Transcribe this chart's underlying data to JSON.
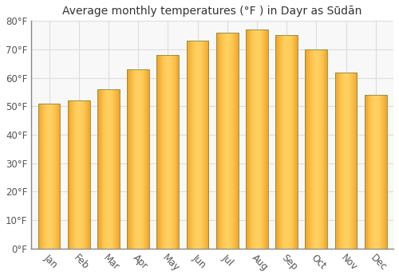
{
  "title": "Average monthly temperatures (°F ) in Dayr as Sūdān",
  "months": [
    "Jan",
    "Feb",
    "Mar",
    "Apr",
    "May",
    "Jun",
    "Jul",
    "Aug",
    "Sep",
    "Oct",
    "Nov",
    "Dec"
  ],
  "values": [
    51,
    52,
    56,
    63,
    68,
    73,
    76,
    77,
    75,
    70,
    62,
    54
  ],
  "ylim": [
    0,
    80
  ],
  "yticks": [
    0,
    10,
    20,
    30,
    40,
    50,
    60,
    70,
    80
  ],
  "ytick_labels": [
    "0°F",
    "10°F",
    "20°F",
    "30°F",
    "40°F",
    "50°F",
    "60°F",
    "70°F",
    "80°F"
  ],
  "bar_color_center": "#FFD060",
  "bar_color_edge": "#F0A020",
  "bar_outline_color": "#888844",
  "background_color": "#ffffff",
  "plot_bg_color": "#f8f8f8",
  "grid_color": "#dddddd",
  "title_fontsize": 10,
  "tick_fontsize": 8.5,
  "bar_width": 0.75,
  "n_gradient_steps": 30
}
